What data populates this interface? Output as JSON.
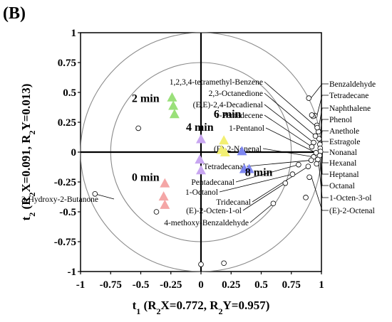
{
  "panel_label": "(B)",
  "chart_data": {
    "type": "scatter",
    "panel": "(B)",
    "xlabel": "t1 (R2X=0.772, R2Y=0.957)",
    "xlabel_parts": {
      "main": "t",
      "sub": "1",
      "rest_open": " (R",
      "rest_sub": "2",
      "rest_mid": "X=0.772, R",
      "rest_sub2": "2",
      "rest_end": "Y=0.957)"
    },
    "ylabel": "t2 (R2X=0.091, R2Y=0.013)",
    "ylabel_parts": {
      "main": "t",
      "sub": "2",
      "rest_open": " (R",
      "rest_sub": "2",
      "rest_mid": "X=0.091, R",
      "rest_sub2": "2",
      "rest_end": "Y=0.013)"
    },
    "xlim": [
      -1,
      1
    ],
    "ylim": [
      -1,
      1
    ],
    "x_ticks": [
      "-1",
      "-0.75",
      "-0.5",
      "-0.25",
      "0",
      "0.25",
      "0.5",
      "0.75",
      "1"
    ],
    "x_tick_values": [
      -1,
      -0.75,
      -0.5,
      -0.25,
      0,
      0.25,
      0.5,
      0.75,
      1
    ],
    "y_ticks": [
      "1",
      "0.75",
      "0.5",
      "0.25",
      "0",
      "-0.25",
      "-0.5",
      "-0.75",
      "-1"
    ],
    "y_tick_values": [
      1,
      0.75,
      0.5,
      0.25,
      0,
      -0.25,
      -0.5,
      -0.75,
      -1
    ],
    "ellipses": [
      {
        "radius": 1.0
      },
      {
        "radius": 0.75
      }
    ],
    "time_groups": [
      {
        "label": "0 min",
        "color": "#f4a6a6",
        "points": [
          [
            -0.3,
            -0.26
          ],
          [
            -0.31,
            -0.37
          ],
          [
            -0.3,
            -0.44
          ]
        ],
        "label_at": [
          -0.46,
          -0.24
        ]
      },
      {
        "label": "2 min",
        "color": "#9ae07a",
        "points": [
          [
            -0.24,
            0.46
          ],
          [
            -0.23,
            0.39
          ],
          [
            -0.22,
            0.32
          ]
        ],
        "label_at": [
          -0.46,
          0.42
        ]
      },
      {
        "label": "4 min",
        "color": "#c8a6f0",
        "points": [
          [
            0.0,
            0.11
          ],
          [
            -0.01,
            -0.06
          ],
          [
            0.0,
            -0.15
          ]
        ],
        "label_at": [
          -0.01,
          0.18
        ]
      },
      {
        "label": "6 min",
        "color": "#f2ef72",
        "points": [
          [
            0.19,
            0.1
          ],
          [
            0.17,
            0.02
          ],
          [
            0.2,
            0.0
          ]
        ],
        "label_at": [
          0.22,
          0.29
        ]
      },
      {
        "label": "8 min",
        "color": "#7d86f0",
        "points": [
          [
            0.34,
            0.01
          ],
          [
            0.36,
            -0.14
          ],
          [
            0.4,
            -0.14
          ]
        ],
        "label_at": [
          0.48,
          -0.2
        ]
      }
    ],
    "variables": [
      {
        "label": "Benzaldehyde",
        "x": 0.895,
        "y": 0.452
      },
      {
        "label": "Tetradecane",
        "x": 0.945,
        "y": 0.306
      },
      {
        "label": "Naphthalene",
        "x": 0.963,
        "y": 0.224
      },
      {
        "label": "Phenol",
        "x": 0.975,
        "y": 0.172
      },
      {
        "label": "Anethole",
        "x": 0.98,
        "y": 0.112
      },
      {
        "label": "Estragole",
        "x": 0.987,
        "y": 0.065
      },
      {
        "label": "Nonanal",
        "x": 0.99,
        "y": 0.032
      },
      {
        "label": "Hexanal",
        "x": 0.992,
        "y": 0.005
      },
      {
        "label": "Heptanal",
        "x": 0.985,
        "y": -0.028
      },
      {
        "label": "Octanal",
        "x": 0.97,
        "y": -0.062
      },
      {
        "label": "1-Octen-3-ol",
        "x": 0.96,
        "y": -0.098
      },
      {
        "label": "(E)-2-Octenal",
        "x": 0.9,
        "y": -0.21
      },
      {
        "label": "1,2,3,4-tetramethyl-Benzene",
        "x": 0.965,
        "y": 0.205
      },
      {
        "label": "2,3-Octanedione",
        "x": 0.95,
        "y": 0.135
      },
      {
        "label": "(E,E)-2,4-Decadienal",
        "x": 0.935,
        "y": 0.08
      },
      {
        "label": "1-Pentadecene",
        "x": 0.92,
        "y": 0.045
      },
      {
        "label": "1-Pentanol",
        "x": 0.955,
        "y": -0.005
      },
      {
        "label": "(E)-2-Nonenal",
        "x": 0.935,
        "y": -0.04
      },
      {
        "label": "Tetradecanal",
        "x": 0.915,
        "y": -0.068
      },
      {
        "label": "Pentadecanal",
        "x": 0.81,
        "y": -0.105
      },
      {
        "label": "1-Octanol",
        "x": 0.76,
        "y": -0.185
      },
      {
        "label": "Tridecanal",
        "x": 0.89,
        "y": -0.12
      },
      {
        "label": "(E)-2-Octen-1-ol",
        "x": 0.7,
        "y": -0.26
      },
      {
        "label": "4-methoxy-Benzaldehyde",
        "x": 0.6,
        "y": -0.43
      },
      {
        "label": "3-Hydroxy-2-Butanone",
        "x": -0.88,
        "y": -0.35
      }
    ],
    "extra_points": [
      [
        0.93,
        0.3
      ],
      [
        0.92,
        0.31
      ],
      [
        -0.52,
        0.2
      ],
      [
        -0.37,
        -0.5
      ],
      [
        0.0,
        -0.94
      ],
      [
        0.19,
        -0.93
      ],
      [
        0.87,
        -0.38
      ]
    ]
  }
}
